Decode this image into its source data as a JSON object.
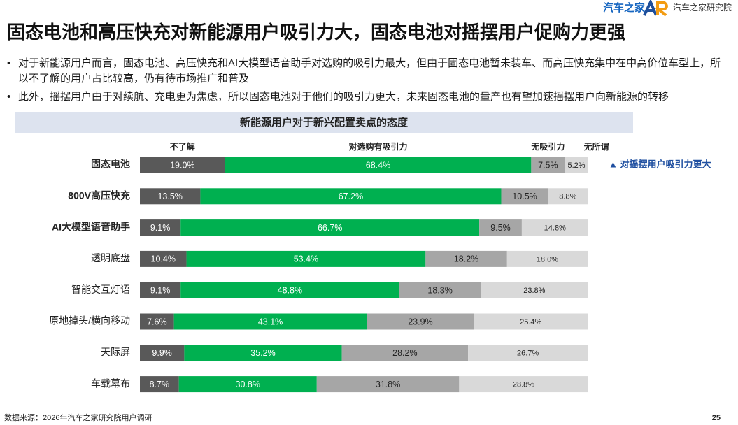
{
  "header": {
    "title": "固态电池和高压快充对新能源用户吸引力大，固态电池对摇摆用户促购力更强",
    "logo": "汽车之家",
    "institute": "汽车之家研究院"
  },
  "bullets": [
    "对于新能源用户而言，固态电池、高压快充和AI大模型语音助手对选购的吸引力最大，但由于固态电池暂未装车、而高压快充集中在中高价位车型上，所以不了解的用户占比较高，仍有待市场推广和普及",
    "此外，摇摆用户由于对续航、充电更为焦虑，所以固态电池对于他们的吸引力更大，未来固态电池的量产也有望加速摇摆用户向新能源的转移"
  ],
  "chart_data": {
    "type": "stacked-bar-horizontal",
    "title": "新能源用户对于新兴配置卖点的态度",
    "annotation": "▲ 对摇摆用户吸引力更大",
    "categories": [
      "固态电池",
      "800V高压快充",
      "AI大模型语音助手",
      "透明底盘",
      "智能交互灯语",
      "原地掉头/横向移动",
      "天际屏",
      "车载幕布"
    ],
    "xlim": [
      0,
      100
    ],
    "series": [
      {
        "name": "不了解",
        "color": "#595959",
        "values": [
          19.0,
          13.5,
          9.1,
          10.4,
          9.1,
          7.6,
          9.9,
          8.7
        ],
        "value_labels": [
          "19.0%",
          "13.5%",
          "9.1%",
          "10.4%",
          "9.1%",
          "7.6%",
          "9.9%",
          "8.7%"
        ]
      },
      {
        "name": "对选购有吸引力",
        "color": "#00b050",
        "values": [
          68.4,
          67.2,
          66.7,
          53.4,
          48.8,
          43.1,
          35.2,
          30.8
        ],
        "value_labels": [
          "68.4%",
          "67.2%",
          "66.7%",
          "53.4%",
          "48.8%",
          "43.1%",
          "35.2%",
          "30.8%"
        ]
      },
      {
        "name": "无吸引力",
        "color": "#a6a6a6",
        "values": [
          7.5,
          10.5,
          9.5,
          18.2,
          18.3,
          23.9,
          28.2,
          31.8
        ],
        "value_labels": [
          "7.5%",
          "10.5%",
          "9.5%",
          "18.2%",
          "18.3%",
          "23.9%",
          "28.2%",
          "31.8%"
        ]
      },
      {
        "name": "无所谓",
        "color": "#d9d9d9",
        "values": [
          5.2,
          8.8,
          14.8,
          18.0,
          23.8,
          25.4,
          26.7,
          28.8
        ],
        "value_labels": [
          "5.2%",
          "8.8%",
          "14.8%",
          "18.0%",
          "23.8%",
          "25.4%",
          "26.7%",
          "28.8%"
        ]
      }
    ]
  },
  "footer": {
    "source": "数据来源：2026年汽车之家研究院用户调研",
    "page": "25"
  }
}
